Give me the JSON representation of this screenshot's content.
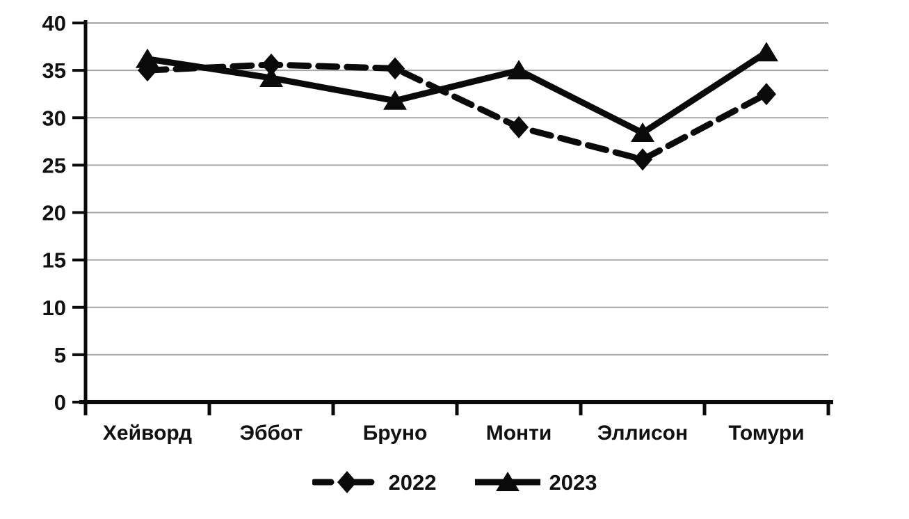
{
  "chart_data": {
    "type": "line",
    "title": "",
    "xlabel": "",
    "ylabel": "",
    "categories": [
      "Хейворд",
      "Эббот",
      "Бруно",
      "Монти",
      "Эллисон",
      "Томури"
    ],
    "series": [
      {
        "name": "2022",
        "values": [
          35,
          35.6,
          35.2,
          29,
          25.6,
          32.5
        ],
        "line_style": "dashed",
        "marker": "diamond",
        "color": "#0a0a0a"
      },
      {
        "name": "2023",
        "values": [
          36.2,
          34.2,
          31.8,
          35,
          28.4,
          36.9
        ],
        "line_style": "solid",
        "marker": "triangle",
        "color": "#0a0a0a"
      }
    ],
    "ylim": [
      0,
      40
    ],
    "ytick_step": 5,
    "ytick_labels": [
      "0",
      "5",
      "10",
      "15",
      "20",
      "25",
      "30",
      "35",
      "40"
    ],
    "grid": true,
    "gridline_color": "#a6a6a6",
    "axis_color": "#0a0a0a",
    "text_color": "#111111",
    "background": "#ffffff",
    "legend_position": "bottom"
  }
}
